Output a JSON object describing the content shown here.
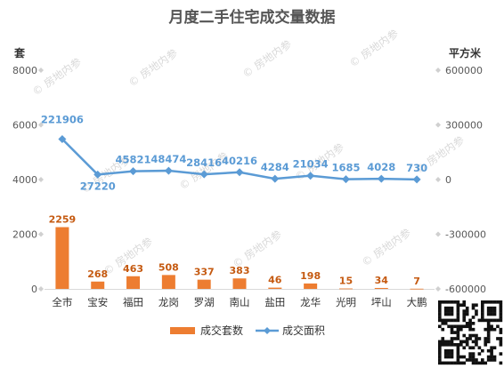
{
  "chart_data": {
    "type": "bar",
    "title": "月度二手住宅成交量数据",
    "left_axis_unit": "套",
    "right_axis_unit": "平方米",
    "categories": [
      "全市",
      "宝安",
      "福田",
      "龙岗",
      "罗湖",
      "南山",
      "盐田",
      "龙华",
      "光明",
      "坪山",
      "大鹏"
    ],
    "y_left": {
      "ylim": [
        0,
        8000
      ],
      "ticks": [
        0,
        2000,
        4000,
        6000,
        8000
      ],
      "tick_labels": [
        "0",
        "2000",
        "4000",
        "6000",
        "8000"
      ]
    },
    "y_right": {
      "ylim": [
        -600000,
        600000
      ],
      "ticks": [
        -600000,
        -300000,
        0,
        300000,
        600000
      ],
      "tick_labels": [
        "-600000",
        "-300000",
        "0",
        "300000",
        "600000"
      ]
    },
    "grid": false,
    "legend_position": "bottom",
    "series": [
      {
        "name": "成交套数",
        "type": "bar",
        "axis": "left",
        "color": "#ed7d31",
        "values": [
          2259,
          268,
          463,
          508,
          337,
          383,
          46,
          198,
          15,
          34,
          7
        ]
      },
      {
        "name": "成交面积",
        "type": "line",
        "axis": "right",
        "color": "#5b9bd5",
        "values": [
          221906,
          27220,
          45821,
          48474,
          28416,
          40216,
          4284,
          21034,
          1685,
          4028,
          730
        ]
      }
    ]
  },
  "watermark_text": "房地内参"
}
